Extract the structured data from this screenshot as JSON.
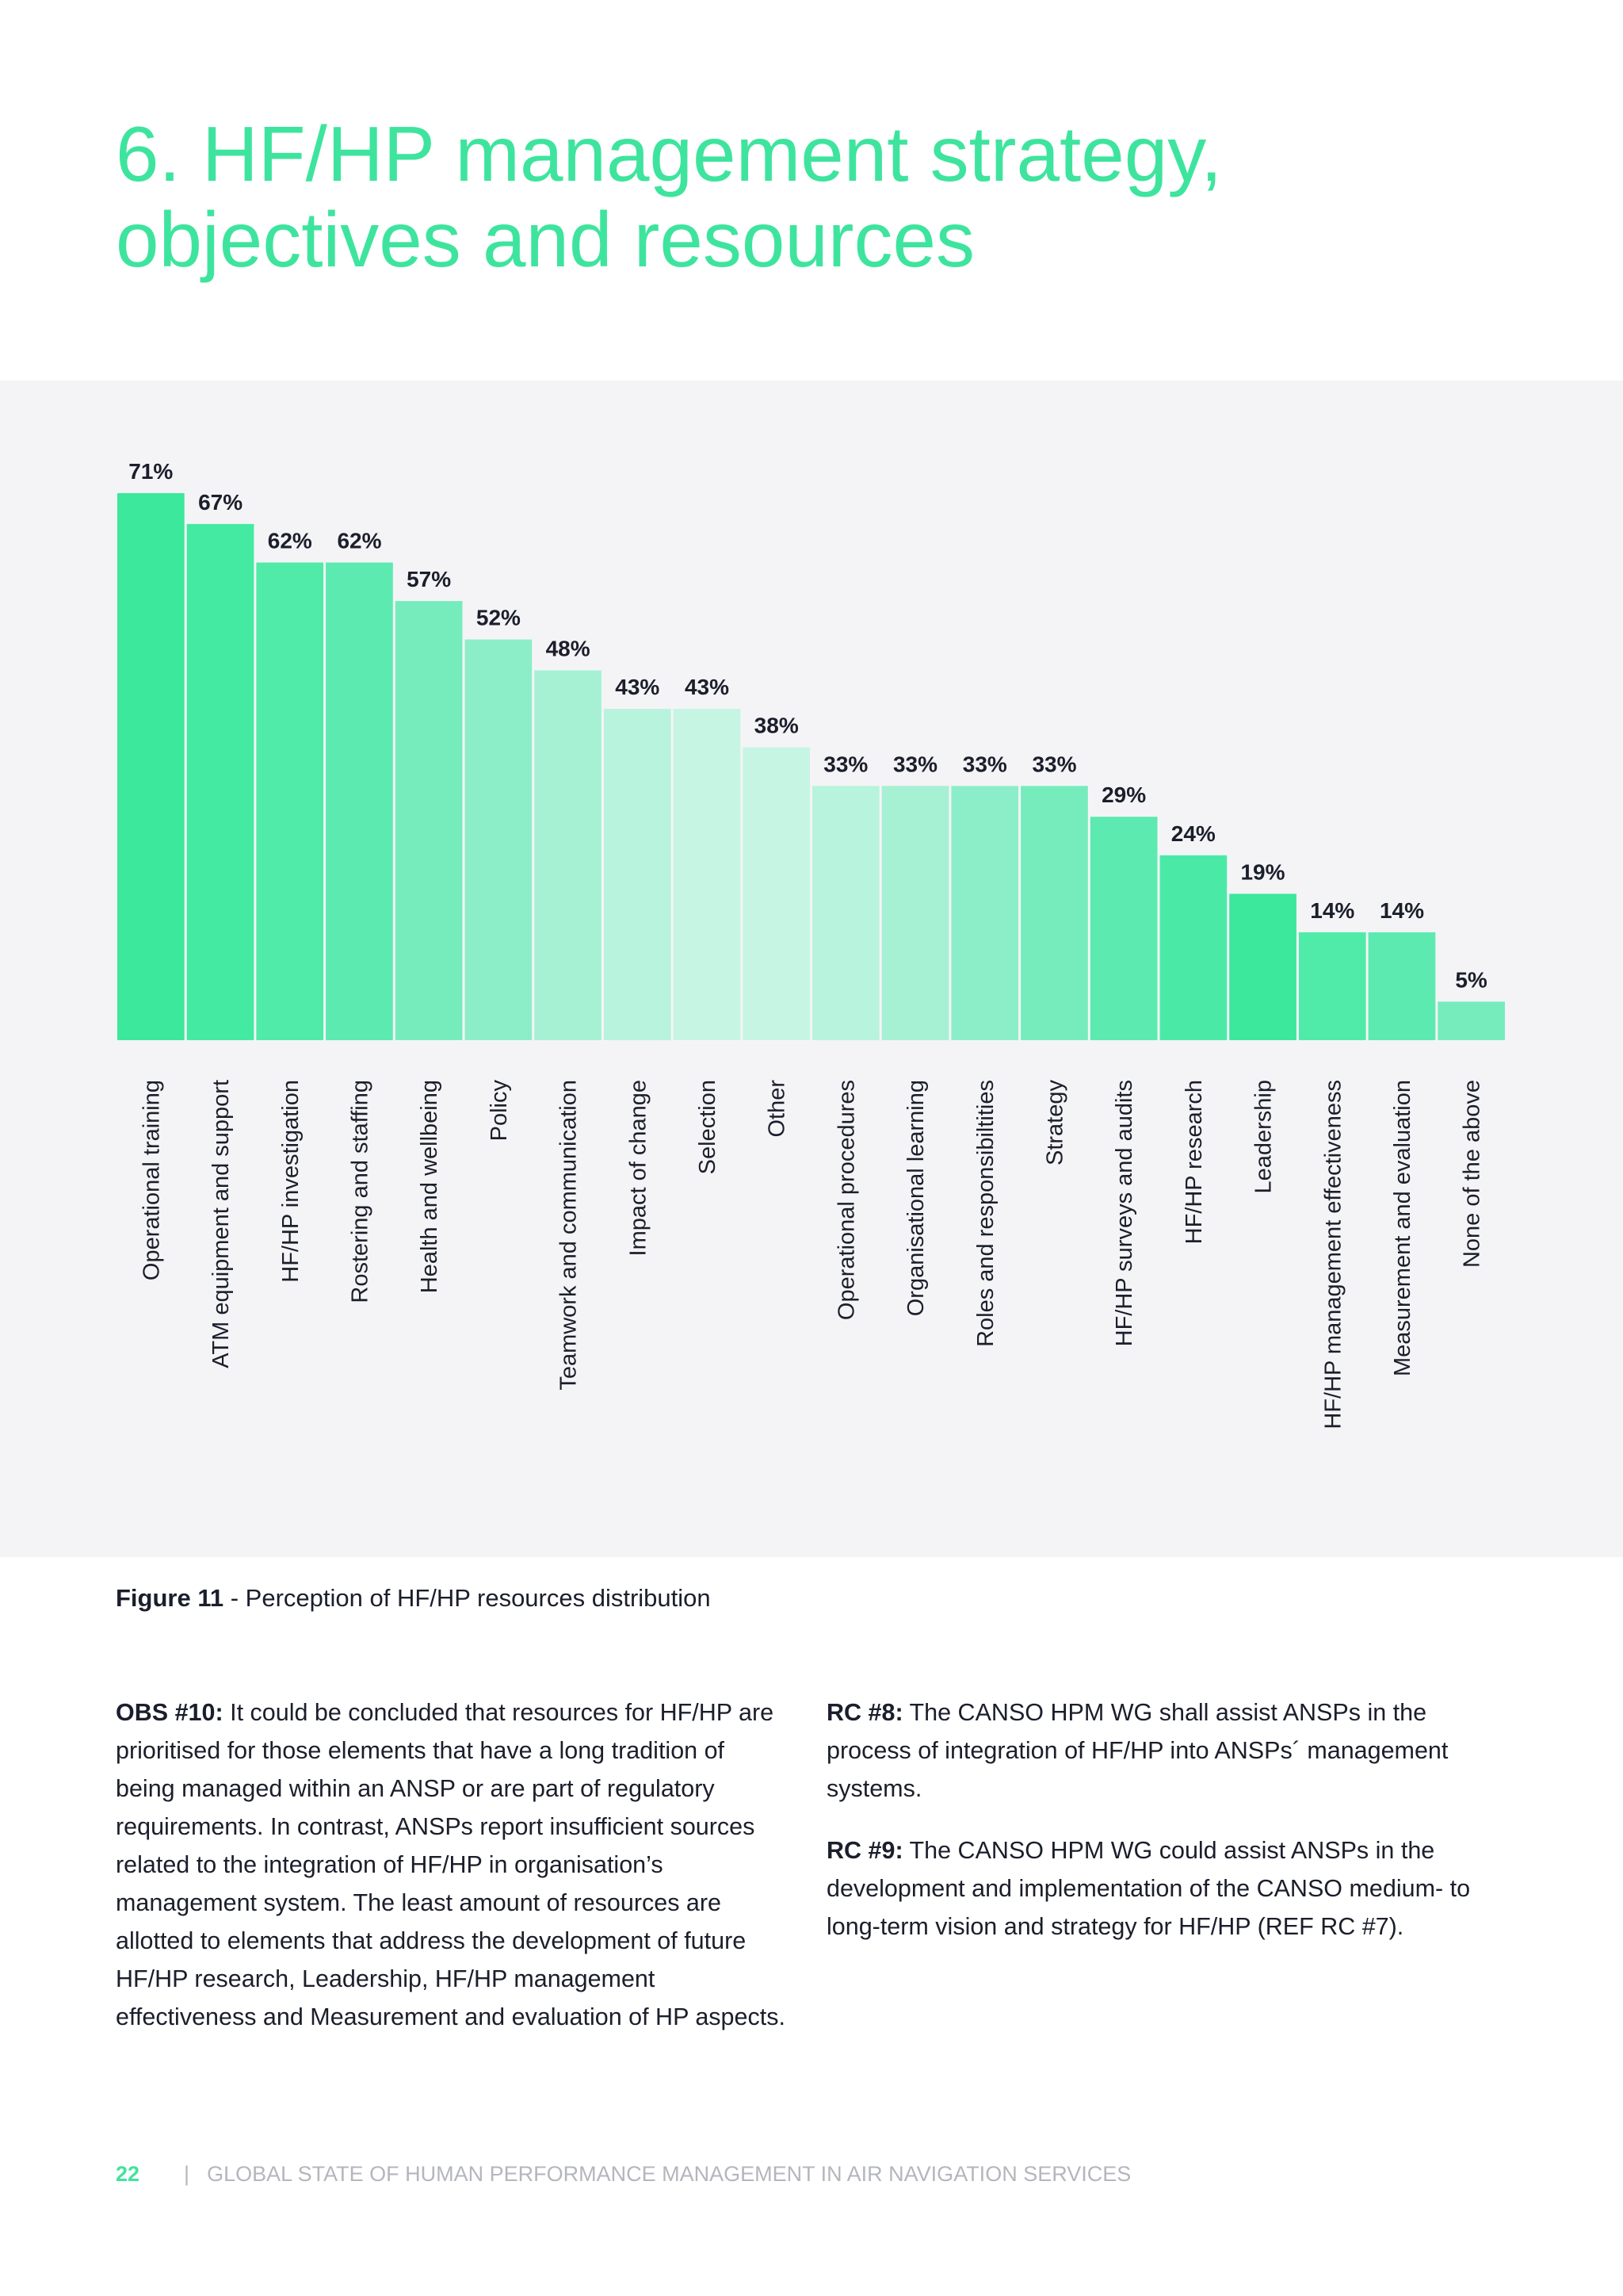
{
  "page": {
    "title_line1": "6. HF/HP management strategy,",
    "title_line2": "objectives and resources"
  },
  "figure": {
    "label": "Figure 11",
    "separator": " - ",
    "caption": "Perception of HF/HP resources distribution"
  },
  "colors": {
    "accent": "#3ee49e",
    "bars": [
      "#3ce89c",
      "#44eaa2",
      "#50eba8",
      "#5ceab0",
      "#76ecbd",
      "#8ceec8",
      "#a6f1d4",
      "#b8f3dd",
      "#c6f5e3",
      "#c6f5e3",
      "#b8f3dd",
      "#a6f1d4",
      "#8ceec8",
      "#76ecbd",
      "#5ceab0",
      "#4aeaa6",
      "#3ce89c",
      "#50eba8",
      "#5ceab0",
      "#76ecbd"
    ]
  },
  "chart_data": {
    "type": "bar",
    "categories": [
      "Operational training",
      "ATM equipment and support",
      "HF/HP investigation",
      "Rostering and staffing",
      "Health and wellbeing",
      "Policy",
      "Teamwork and communication",
      "Impact of change",
      "Selection",
      "Other",
      "Operational procedures",
      "Organisational learning",
      "Roles and responsibiltities",
      "Strategy",
      "HF/HP surveys and audits",
      "HF/HP research",
      "Leadership",
      "HF/HP management effectiveness",
      "Measurement and evaluation",
      "None of the above"
    ],
    "values": [
      71,
      67,
      62,
      62,
      57,
      52,
      48,
      43,
      43,
      38,
      33,
      33,
      33,
      33,
      29,
      24,
      19,
      14,
      14,
      5
    ],
    "value_labels": [
      "71%",
      "67%",
      "62%",
      "62%",
      "57%",
      "52%",
      "48%",
      "43%",
      "43%",
      "38%",
      "33%",
      "33%",
      "33%",
      "33%",
      "29%",
      "24%",
      "19%",
      "14%",
      "14%",
      "5%"
    ],
    "unit": "%",
    "ylim": [
      0,
      71
    ],
    "grid": false,
    "legend": "none"
  },
  "body": {
    "obs_label": "OBS #10:",
    "obs_text": " It could be concluded that resources for HF/HP are prioritised for those elements that have a long tradition of being managed within an ANSP or are part of regulatory requirements. In contrast, ANSPs report insufficient sources related to the integration of HF/HP in organisation’s management system. The least amount of resources are allotted to elements that address the development of future HF/HP research, Leadership, HF/HP management effectiveness and Measurement and evaluation of HP aspects.",
    "rc8_label": "RC #8:",
    "rc8_text": " The CANSO HPM WG shall assist ANSPs in the process of integration of HF/HP into ANSPs´ management systems.",
    "rc9_label": "RC #9:",
    "rc9_text": " The CANSO HPM WG could assist ANSPs in the development and implementation of the CANSO medium- to long-term vision and strategy for HF/HP (REF RC #7)."
  },
  "footer": {
    "page_number": "22",
    "separator": "|",
    "publication": "GLOBAL STATE OF HUMAN PERFORMANCE MANAGEMENT IN AIR NAVIGATION SERVICES"
  }
}
